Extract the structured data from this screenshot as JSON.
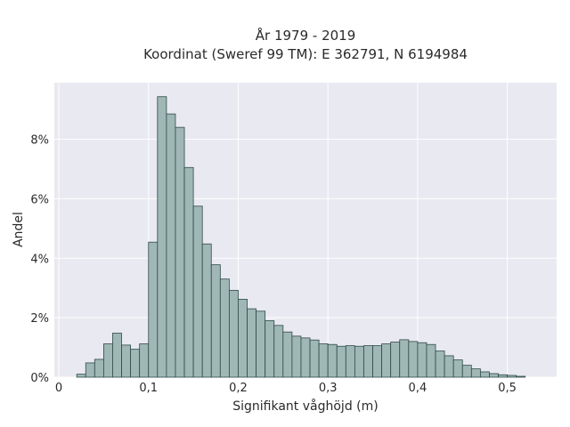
{
  "chart_data": {
    "type": "bar",
    "title": "År 1979 - 2019",
    "subtitle": "Koordinat (Sweref 99 TM): E 362791, N 6194984",
    "xlabel": "Signifikant våghöjd (m)",
    "ylabel": "Andel",
    "xlim": [
      -0.005,
      0.555
    ],
    "ylim": [
      0,
      0.099
    ],
    "bin_width": 0.01,
    "x_ticks": [
      0,
      0.1,
      0.2,
      0.3,
      0.4,
      0.5
    ],
    "x_tick_labels": [
      "0",
      "0,1",
      "0,2",
      "0,3",
      "0,4",
      "0,5"
    ],
    "y_ticks": [
      0,
      0.02,
      0.04,
      0.06,
      0.08
    ],
    "y_tick_labels": [
      "0%",
      "2%",
      "4%",
      "6%",
      "8%"
    ],
    "grid": true,
    "bins_start": [
      0.02,
      0.03,
      0.04,
      0.05,
      0.06,
      0.07,
      0.08,
      0.09,
      0.1,
      0.11,
      0.12,
      0.13,
      0.14,
      0.15,
      0.16,
      0.17,
      0.18,
      0.19,
      0.2,
      0.21,
      0.22,
      0.23,
      0.24,
      0.25,
      0.26,
      0.27,
      0.28,
      0.29,
      0.3,
      0.31,
      0.32,
      0.33,
      0.34,
      0.35,
      0.36,
      0.37,
      0.38,
      0.39,
      0.4,
      0.41,
      0.42,
      0.43,
      0.44,
      0.45,
      0.46,
      0.47,
      0.48,
      0.49,
      0.5,
      0.51,
      0.52
    ],
    "values": [
      0.001,
      0.0048,
      0.006,
      0.0112,
      0.0148,
      0.0108,
      0.0094,
      0.0112,
      0.0454,
      0.0943,
      0.0885,
      0.084,
      0.0705,
      0.0575,
      0.0448,
      0.0378,
      0.033,
      0.0292,
      0.0262,
      0.023,
      0.0222,
      0.019,
      0.0174,
      0.0152,
      0.0138,
      0.0132,
      0.0125,
      0.0112,
      0.011,
      0.0104,
      0.0106,
      0.0104,
      0.0106,
      0.0106,
      0.0112,
      0.0118,
      0.0126,
      0.012,
      0.0116,
      0.011,
      0.0088,
      0.0072,
      0.0058,
      0.004,
      0.0028,
      0.0018,
      0.0012,
      0.0008,
      0.0006,
      0.0003,
      0.0
    ]
  }
}
